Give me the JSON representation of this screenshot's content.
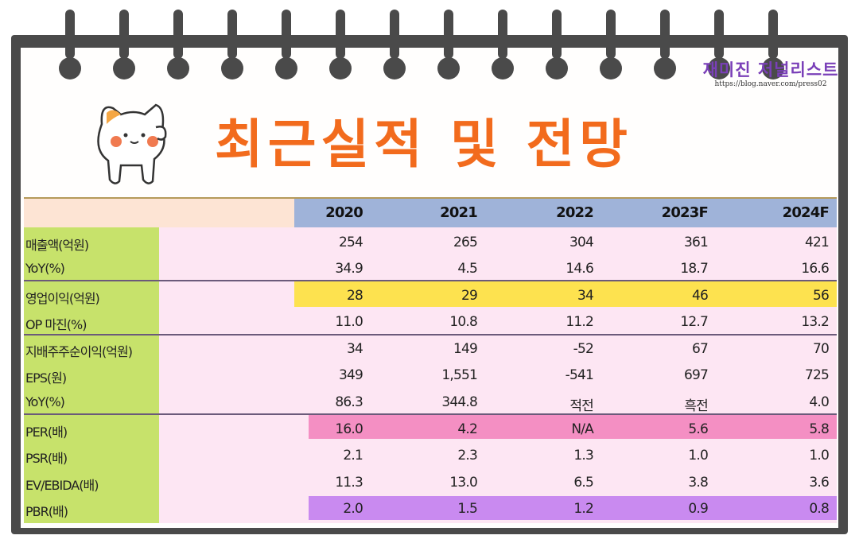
{
  "header": {
    "title": "최근실적 및 전망",
    "logo_text": "재미진 저널리스트",
    "logo_url": "https://blog.naver.com/press02"
  },
  "table": {
    "years": [
      "2020",
      "2021",
      "2022",
      "2023F",
      "2024F"
    ],
    "rows": [
      {
        "label": "매출액(억원)",
        "values": [
          "254",
          "265",
          "304",
          "361",
          "421"
        ]
      },
      {
        "label": "YoY(%)",
        "values": [
          "34.9",
          "4.5",
          "14.6",
          "18.7",
          "16.6"
        ]
      },
      {
        "label": "영업이익(억원)",
        "values": [
          "28",
          "29",
          "34",
          "46",
          "56"
        ]
      },
      {
        "label": "OP 마진(%)",
        "values": [
          "11.0",
          "10.8",
          "11.2",
          "12.7",
          "13.2"
        ]
      },
      {
        "label": "지배주주순이익(억원)",
        "values": [
          "34",
          "149",
          "-52",
          "67",
          "70"
        ]
      },
      {
        "label": "EPS(원)",
        "values": [
          "349",
          "1,551",
          "-541",
          "697",
          "725"
        ]
      },
      {
        "label": "YoY(%)",
        "values": [
          "86.3",
          "344.8",
          "적전",
          "흑전",
          "4.0"
        ]
      },
      {
        "label": "PER(배)",
        "values": [
          "16.0",
          "4.2",
          "N/A",
          "5.6",
          "5.8"
        ]
      },
      {
        "label": "PSR(배)",
        "values": [
          "2.1",
          "2.3",
          "1.3",
          "1.0",
          "1.0"
        ]
      },
      {
        "label": "EV/EBIDA(배)",
        "values": [
          "11.3",
          "13.0",
          "6.5",
          "3.8",
          "3.6"
        ]
      },
      {
        "label": "PBR(배)",
        "values": [
          "2.0",
          "1.5",
          "1.2",
          "0.9",
          "0.8"
        ]
      }
    ]
  },
  "colors": {
    "title": "#f26b1d",
    "header_band": "#9fb3d9",
    "label_column": "#c7e26b",
    "body": "#fde6f3",
    "highlight_operating_profit": "#fde24f",
    "highlight_per": "#f48fc3",
    "highlight_pbr": "#c98af0"
  }
}
